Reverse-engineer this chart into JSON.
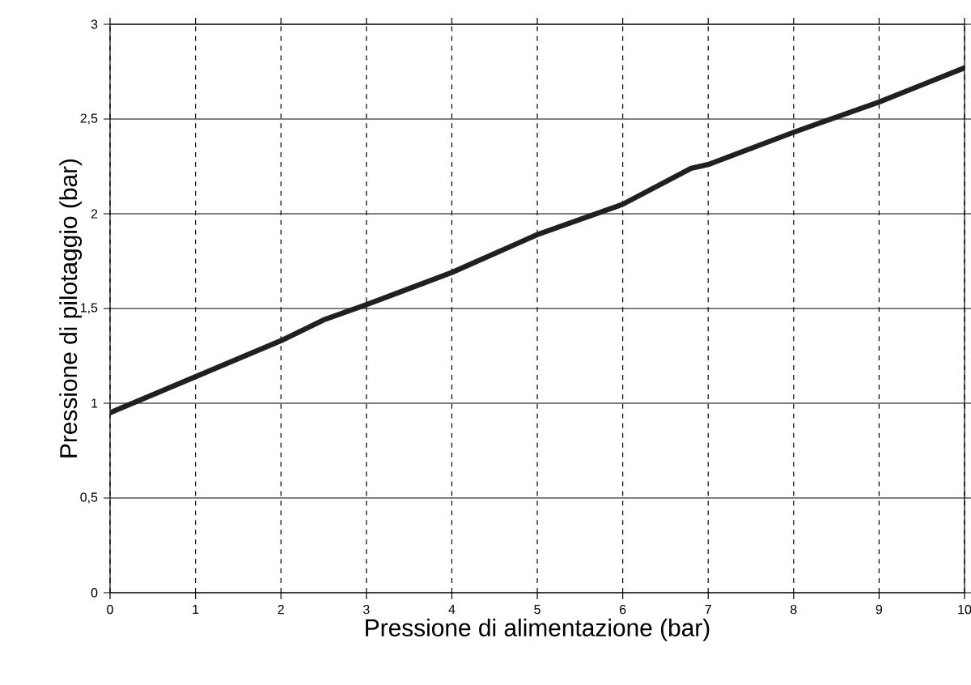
{
  "chart_data": {
    "type": "line",
    "xlabel": "Pressione di alimentazione (bar)",
    "ylabel": "Pressione di pilotaggio (bar)",
    "xlim": [
      0,
      10
    ],
    "ylim": [
      0,
      3
    ],
    "xticks": [
      0,
      1,
      2,
      3,
      4,
      5,
      6,
      7,
      8,
      9,
      10
    ],
    "yticks": [
      0,
      {
        "value": 0.5,
        "label": "0,5"
      },
      1,
      {
        "value": 1.5,
        "label": "1,5"
      },
      2,
      {
        "value": 2.5,
        "label": "2,5"
      },
      3
    ],
    "grid": true,
    "marker": "none",
    "line_style": "solid",
    "series": [
      {
        "color": "#231f20",
        "x": [
          0,
          1,
          2,
          2.5,
          3,
          4,
          4.8,
          5,
          6,
          6.8,
          7,
          8,
          9,
          9.5,
          10
        ],
        "values": [
          0.95,
          1.14,
          1.33,
          1.44,
          1.52,
          1.69,
          1.85,
          1.89,
          2.05,
          2.24,
          2.26,
          2.43,
          2.59,
          2.68,
          2.77
        ]
      }
    ]
  }
}
